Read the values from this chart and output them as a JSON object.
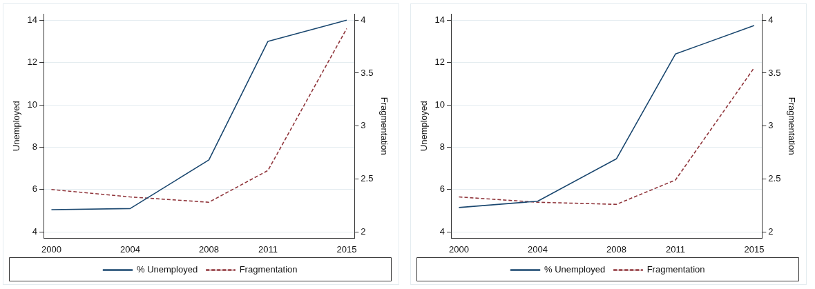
{
  "chart_data": [
    {
      "type": "line",
      "x": [
        2000,
        2004,
        2008,
        2011,
        2015
      ],
      "ylabel": "Unemployed",
      "y2label": "Fragmentation",
      "series": [
        {
          "name": "% Unemployed",
          "color": "#1a476f",
          "values": [
            5.05,
            5.1,
            7.4,
            13.0,
            14.0
          ],
          "line_style": "solid"
        },
        {
          "name": "Fragmentation",
          "color": "#90353b",
          "values": [
            2.4,
            2.33,
            2.28,
            2.58,
            3.92
          ],
          "axis": "y2",
          "line_style": "dashed"
        }
      ],
      "xlim": [
        1999.6,
        2015.4
      ],
      "xticks": [
        2000,
        2004,
        2008,
        2011,
        2015
      ],
      "ylim": [
        3.7,
        14.3
      ],
      "yticks": [
        4,
        6,
        8,
        10,
        12,
        14
      ],
      "y2lim": [
        1.94,
        4.06
      ],
      "y2ticks": [
        2,
        2.5,
        3,
        3.5,
        4
      ],
      "grid": "y",
      "legend": "bottom",
      "marker": "none"
    },
    {
      "type": "line",
      "x": [
        2000,
        2004,
        2008,
        2011,
        2015
      ],
      "ylabel": "Unemployed",
      "y2label": "Fragmentation",
      "series": [
        {
          "name": "% Unemployed",
          "color": "#1a476f",
          "values": [
            5.15,
            5.45,
            7.45,
            12.4,
            13.75
          ],
          "line_style": "solid"
        },
        {
          "name": "Fragmentation",
          "color": "#90353b",
          "values": [
            2.33,
            2.28,
            2.26,
            2.49,
            3.55
          ],
          "axis": "y2",
          "line_style": "dashed"
        }
      ],
      "xlim": [
        1999.6,
        2015.4
      ],
      "xticks": [
        2000,
        2004,
        2008,
        2011,
        2015
      ],
      "ylim": [
        3.7,
        14.3
      ],
      "yticks": [
        4,
        6,
        8,
        10,
        12,
        14
      ],
      "y2lim": [
        1.94,
        4.06
      ],
      "y2ticks": [
        2,
        2.5,
        3,
        3.5,
        4
      ],
      "grid": "y",
      "legend": "bottom",
      "marker": "none"
    }
  ]
}
